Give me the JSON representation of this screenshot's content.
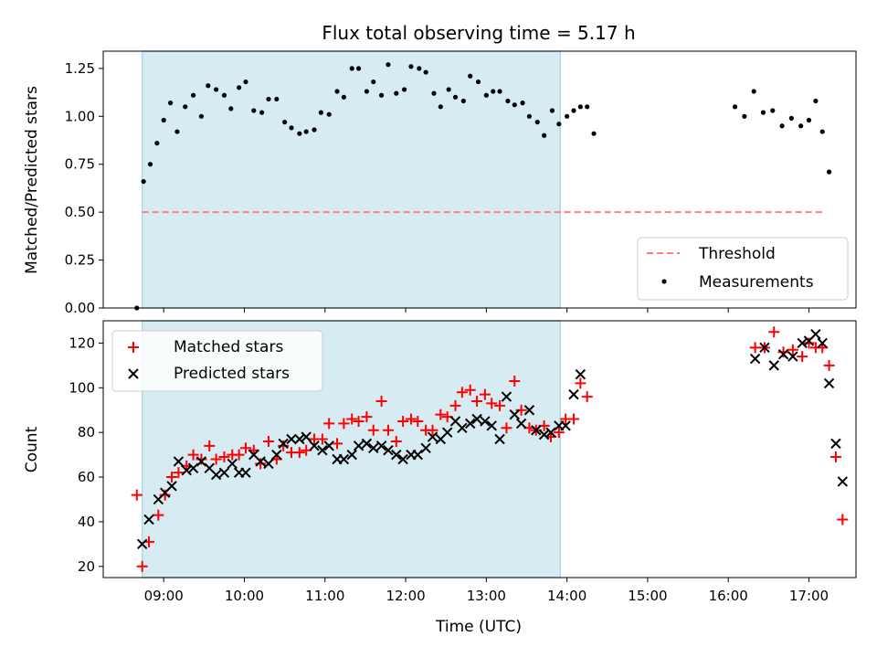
{
  "title": "Flux total observing time = 5.17 h",
  "xlabel": "Time (UTC)",
  "x_tick_labels": [
    "09:00",
    "10:00",
    "11:00",
    "12:00",
    "13:00",
    "14:00",
    "15:00",
    "16:00",
    "17:00"
  ],
  "chart_data": [
    {
      "type": "scatter",
      "title": "Flux total observing time = 5.17 h",
      "ylabel": "Matched/Predicted stars",
      "x_range": [
        "08:15",
        "17:35"
      ],
      "ylim": [
        0,
        1.34
      ],
      "y_ticks": [
        "0.00",
        "0.25",
        "0.50",
        "0.75",
        "1.00",
        "1.25"
      ],
      "legend_position": "lower right",
      "shaded_span": {
        "start": "08:44",
        "end": "13:55",
        "color": "#add8e6"
      },
      "threshold": {
        "name": "Threshold",
        "y": 0.5,
        "x_start": "08:44",
        "x_end": "17:10",
        "color": "#ff7f7f",
        "style": "dashed"
      },
      "series": [
        {
          "name": "Measurements",
          "marker": "dot",
          "color": "#000000",
          "points": [
            [
              "08:40",
              0.0
            ],
            [
              "08:45",
              0.66
            ],
            [
              "08:50",
              0.75
            ],
            [
              "08:55",
              0.86
            ],
            [
              "09:00",
              0.98
            ],
            [
              "09:05",
              1.07
            ],
            [
              "09:10",
              0.92
            ],
            [
              "09:16",
              1.05
            ],
            [
              "09:22",
              1.11
            ],
            [
              "09:28",
              1.0
            ],
            [
              "09:33",
              1.16
            ],
            [
              "09:39",
              1.14
            ],
            [
              "09:45",
              1.11
            ],
            [
              "09:50",
              1.04
            ],
            [
              "09:56",
              1.15
            ],
            [
              "10:01",
              1.18
            ],
            [
              "10:07",
              1.03
            ],
            [
              "10:13",
              1.02
            ],
            [
              "10:18",
              1.09
            ],
            [
              "10:24",
              1.09
            ],
            [
              "10:30",
              0.97
            ],
            [
              "10:35",
              0.94
            ],
            [
              "10:41",
              0.91
            ],
            [
              "10:46",
              0.92
            ],
            [
              "10:52",
              0.93
            ],
            [
              "10:57",
              1.02
            ],
            [
              "11:03",
              1.01
            ],
            [
              "11:09",
              1.13
            ],
            [
              "11:14",
              1.1
            ],
            [
              "11:20",
              1.25
            ],
            [
              "11:25",
              1.25
            ],
            [
              "11:31",
              1.13
            ],
            [
              "11:36",
              1.18
            ],
            [
              "11:42",
              1.11
            ],
            [
              "11:47",
              1.27
            ],
            [
              "11:53",
              1.12
            ],
            [
              "11:59",
              1.14
            ],
            [
              "12:04",
              1.26
            ],
            [
              "12:10",
              1.25
            ],
            [
              "12:15",
              1.23
            ],
            [
              "12:21",
              1.12
            ],
            [
              "12:26",
              1.05
            ],
            [
              "12:32",
              1.14
            ],
            [
              "12:37",
              1.1
            ],
            [
              "12:43",
              1.08
            ],
            [
              "12:48",
              1.21
            ],
            [
              "12:54",
              1.18
            ],
            [
              "13:00",
              1.11
            ],
            [
              "13:05",
              1.13
            ],
            [
              "13:10",
              1.13
            ],
            [
              "13:16",
              1.08
            ],
            [
              "13:21",
              1.06
            ],
            [
              "13:27",
              1.07
            ],
            [
              "13:32",
              1.0
            ],
            [
              "13:38",
              0.97
            ],
            [
              "13:43",
              0.9
            ],
            [
              "13:49",
              1.03
            ],
            [
              "13:54",
              0.96
            ],
            [
              "14:00",
              1.0
            ],
            [
              "14:05",
              1.03
            ],
            [
              "14:10",
              1.05
            ],
            [
              "14:15",
              1.05
            ],
            [
              "14:20",
              0.91
            ],
            [
              "16:05",
              1.05
            ],
            [
              "16:12",
              1.0
            ],
            [
              "16:19",
              1.13
            ],
            [
              "16:26",
              1.02
            ],
            [
              "16:33",
              1.03
            ],
            [
              "16:40",
              0.95
            ],
            [
              "16:47",
              0.99
            ],
            [
              "16:54",
              0.95
            ],
            [
              "17:00",
              0.98
            ],
            [
              "17:05",
              1.08
            ],
            [
              "17:10",
              0.92
            ],
            [
              "17:15",
              0.71
            ]
          ]
        }
      ]
    },
    {
      "type": "scatter",
      "ylabel": "Count",
      "x_range": [
        "08:15",
        "17:35"
      ],
      "ylim": [
        15,
        130
      ],
      "y_ticks": [
        "20",
        "40",
        "60",
        "80",
        "100",
        "120"
      ],
      "legend_position": "upper left",
      "shaded_span": {
        "start": "08:44",
        "end": "13:55",
        "color": "#add8e6"
      },
      "series": [
        {
          "name": "Matched stars",
          "marker": "plus",
          "color": "#ff0000",
          "points": [
            [
              "08:40",
              52
            ],
            [
              "08:44",
              20
            ],
            [
              "08:49",
              31
            ],
            [
              "08:56",
              43
            ],
            [
              "09:01",
              52
            ],
            [
              "09:06",
              60
            ],
            [
              "09:11",
              62
            ],
            [
              "09:17",
              65
            ],
            [
              "09:22",
              70
            ],
            [
              "09:28",
              68
            ],
            [
              "09:34",
              74
            ],
            [
              "09:39",
              68
            ],
            [
              "09:45",
              69
            ],
            [
              "09:51",
              70
            ],
            [
              "09:56",
              70
            ],
            [
              "10:01",
              73
            ],
            [
              "10:07",
              72
            ],
            [
              "10:12",
              66
            ],
            [
              "10:18",
              76
            ],
            [
              "10:24",
              68
            ],
            [
              "10:29",
              74
            ],
            [
              "10:35",
              71
            ],
            [
              "10:41",
              71
            ],
            [
              "10:46",
              72
            ],
            [
              "10:52",
              77
            ],
            [
              "10:58",
              77
            ],
            [
              "11:03",
              84
            ],
            [
              "11:09",
              75
            ],
            [
              "11:14",
              84
            ],
            [
              "11:20",
              86
            ],
            [
              "11:25",
              85
            ],
            [
              "11:31",
              87
            ],
            [
              "11:36",
              81
            ],
            [
              "11:42",
              94
            ],
            [
              "11:47",
              81
            ],
            [
              "11:53",
              76
            ],
            [
              "11:58",
              85
            ],
            [
              "12:04",
              86
            ],
            [
              "12:09",
              85
            ],
            [
              "12:15",
              81
            ],
            [
              "12:20",
              81
            ],
            [
              "12:26",
              88
            ],
            [
              "12:31",
              87
            ],
            [
              "12:37",
              92
            ],
            [
              "12:42",
              98
            ],
            [
              "12:48",
              99
            ],
            [
              "12:53",
              94
            ],
            [
              "12:59",
              97
            ],
            [
              "13:04",
              93
            ],
            [
              "13:10",
              92
            ],
            [
              "13:15",
              82
            ],
            [
              "13:21",
              103
            ],
            [
              "13:26",
              90
            ],
            [
              "13:32",
              82
            ],
            [
              "13:37",
              81
            ],
            [
              "13:43",
              83
            ],
            [
              "13:48",
              78
            ],
            [
              "13:54",
              80
            ],
            [
              "13:59",
              86
            ],
            [
              "14:05",
              86
            ],
            [
              "14:10",
              102
            ],
            [
              "14:15",
              96
            ],
            [
              "16:20",
              118
            ],
            [
              "16:27",
              118
            ],
            [
              "16:34",
              125
            ],
            [
              "16:41",
              116
            ],
            [
              "16:48",
              117
            ],
            [
              "16:55",
              114
            ],
            [
              "17:00",
              120
            ],
            [
              "17:05",
              118
            ],
            [
              "17:10",
              118
            ],
            [
              "17:15",
              110
            ],
            [
              "17:20",
              69
            ],
            [
              "17:25",
              41
            ]
          ]
        },
        {
          "name": "Predicted stars",
          "marker": "x",
          "color": "#000000",
          "points": [
            [
              "08:44",
              30
            ],
            [
              "08:49",
              41
            ],
            [
              "08:56",
              50
            ],
            [
              "09:01",
              53
            ],
            [
              "09:06",
              56
            ],
            [
              "09:11",
              67
            ],
            [
              "09:17",
              63
            ],
            [
              "09:22",
              64
            ],
            [
              "09:28",
              67
            ],
            [
              "09:34",
              64
            ],
            [
              "09:39",
              61
            ],
            [
              "09:45",
              62
            ],
            [
              "09:51",
              66
            ],
            [
              "09:56",
              62
            ],
            [
              "10:01",
              62
            ],
            [
              "10:07",
              70
            ],
            [
              "10:12",
              67
            ],
            [
              "10:18",
              66
            ],
            [
              "10:24",
              70
            ],
            [
              "10:29",
              75
            ],
            [
              "10:35",
              77
            ],
            [
              "10:41",
              77
            ],
            [
              "10:46",
              78
            ],
            [
              "10:52",
              74
            ],
            [
              "10:58",
              72
            ],
            [
              "11:03",
              74
            ],
            [
              "11:09",
              68
            ],
            [
              "11:14",
              68
            ],
            [
              "11:20",
              70
            ],
            [
              "11:25",
              74
            ],
            [
              "11:31",
              75
            ],
            [
              "11:36",
              73
            ],
            [
              "11:42",
              74
            ],
            [
              "11:47",
              72
            ],
            [
              "11:53",
              70
            ],
            [
              "11:58",
              68
            ],
            [
              "12:04",
              70
            ],
            [
              "12:09",
              70
            ],
            [
              "12:15",
              73
            ],
            [
              "12:20",
              78
            ],
            [
              "12:26",
              77
            ],
            [
              "12:31",
              80
            ],
            [
              "12:37",
              85
            ],
            [
              "12:42",
              82
            ],
            [
              "12:48",
              84
            ],
            [
              "12:53",
              86
            ],
            [
              "12:59",
              85
            ],
            [
              "13:04",
              83
            ],
            [
              "13:10",
              77
            ],
            [
              "13:15",
              96
            ],
            [
              "13:21",
              88
            ],
            [
              "13:26",
              84
            ],
            [
              "13:32",
              90
            ],
            [
              "13:37",
              81
            ],
            [
              "13:43",
              79
            ],
            [
              "13:48",
              80
            ],
            [
              "13:54",
              83
            ],
            [
              "13:59",
              83
            ],
            [
              "14:05",
              97
            ],
            [
              "14:10",
              106
            ],
            [
              "16:20",
              113
            ],
            [
              "16:27",
              118
            ],
            [
              "16:34",
              110
            ],
            [
              "16:41",
              115
            ],
            [
              "16:48",
              114
            ],
            [
              "16:55",
              120
            ],
            [
              "17:00",
              121
            ],
            [
              "17:05",
              124
            ],
            [
              "17:10",
              120
            ],
            [
              "17:15",
              102
            ],
            [
              "17:20",
              75
            ],
            [
              "17:25",
              58
            ]
          ]
        }
      ]
    }
  ]
}
